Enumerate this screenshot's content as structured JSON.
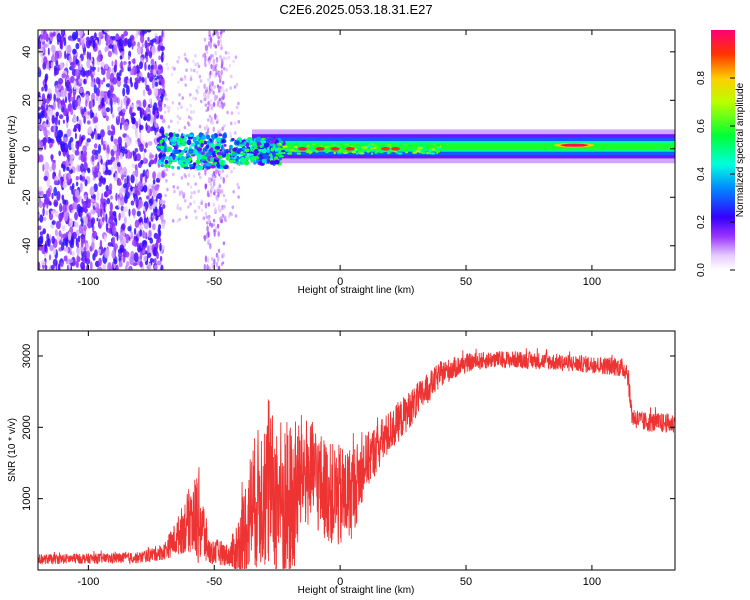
{
  "title": "C2E6.2025.053.18.31.E27",
  "chart_data": [
    {
      "type": "heatmap",
      "xlabel": "Height of straight line (km)",
      "ylabel": "Frequency (Hz)",
      "xlim": [
        -120,
        133
      ],
      "ylim": [
        -50,
        49
      ],
      "xticks": [
        -100,
        -50,
        0,
        50,
        100
      ],
      "yticks": [
        -40,
        -20,
        0,
        20,
        40
      ],
      "colorbar": {
        "label": "Normalized spectral amplitude",
        "range": [
          0,
          1
        ],
        "ticks": [
          0.0,
          0.2,
          0.4,
          0.6,
          0.8
        ]
      },
      "regions": [
        {
          "x_range": [
            -120,
            -70
          ],
          "description_level": 0.12,
          "freq_spread": 49
        },
        {
          "x_range": [
            -70,
            -40
          ],
          "description_level": 0.35,
          "freq_spread": 6
        },
        {
          "x_range": [
            -40,
            133
          ],
          "description_level": 0.55,
          "freq_spread": 3
        }
      ],
      "peak_points": [
        {
          "x": -15,
          "y": 0,
          "value": 0.95
        },
        {
          "x": -8,
          "y": 0,
          "value": 0.95
        },
        {
          "x": -2,
          "y": 0,
          "value": 0.93
        },
        {
          "x": 4,
          "y": 0,
          "value": 0.92
        },
        {
          "x": 18,
          "y": 0,
          "value": 0.9
        },
        {
          "x": 22,
          "y": 0,
          "value": 0.92
        },
        {
          "x": 90,
          "y": 1.5,
          "value": 0.97
        },
        {
          "x": 96,
          "y": 1.5,
          "value": 0.96
        }
      ],
      "grid": false
    },
    {
      "type": "line",
      "xlabel": "Height of straight line (km)",
      "ylabel": "SNR (10 * v/v)",
      "xlim": [
        -120,
        133
      ],
      "ylim": [
        0,
        3350
      ],
      "xticks": [
        -100,
        -50,
        0,
        50,
        100
      ],
      "yticks": [
        1000,
        2000,
        3000
      ],
      "color": "#ee3333",
      "envelope": {
        "x": [
          -120,
          -100,
          -80,
          -70,
          -65,
          -60,
          -56,
          -52,
          -48,
          -44,
          -40,
          -35,
          -30,
          -25,
          -20,
          -15,
          -10,
          -5,
          0,
          5,
          10,
          20,
          30,
          40,
          50,
          60,
          70,
          80,
          90,
          100,
          110,
          114,
          116,
          120,
          133
        ],
        "mean": [
          150,
          160,
          170,
          260,
          450,
          700,
          750,
          250,
          250,
          200,
          300,
          900,
          1100,
          1000,
          800,
          1400,
          1300,
          1100,
          1000,
          1100,
          1500,
          1950,
          2350,
          2750,
          2900,
          2950,
          2950,
          2930,
          2900,
          2880,
          2850,
          2800,
          2150,
          2080,
          2050
        ],
        "amp": [
          70,
          70,
          80,
          120,
          250,
          450,
          700,
          180,
          180,
          150,
          550,
          900,
          1100,
          1200,
          1300,
          800,
          750,
          700,
          750,
          650,
          400,
          300,
          250,
          180,
          130,
          120,
          120,
          120,
          120,
          120,
          130,
          150,
          150,
          140,
          140
        ]
      },
      "grid": false
    }
  ]
}
